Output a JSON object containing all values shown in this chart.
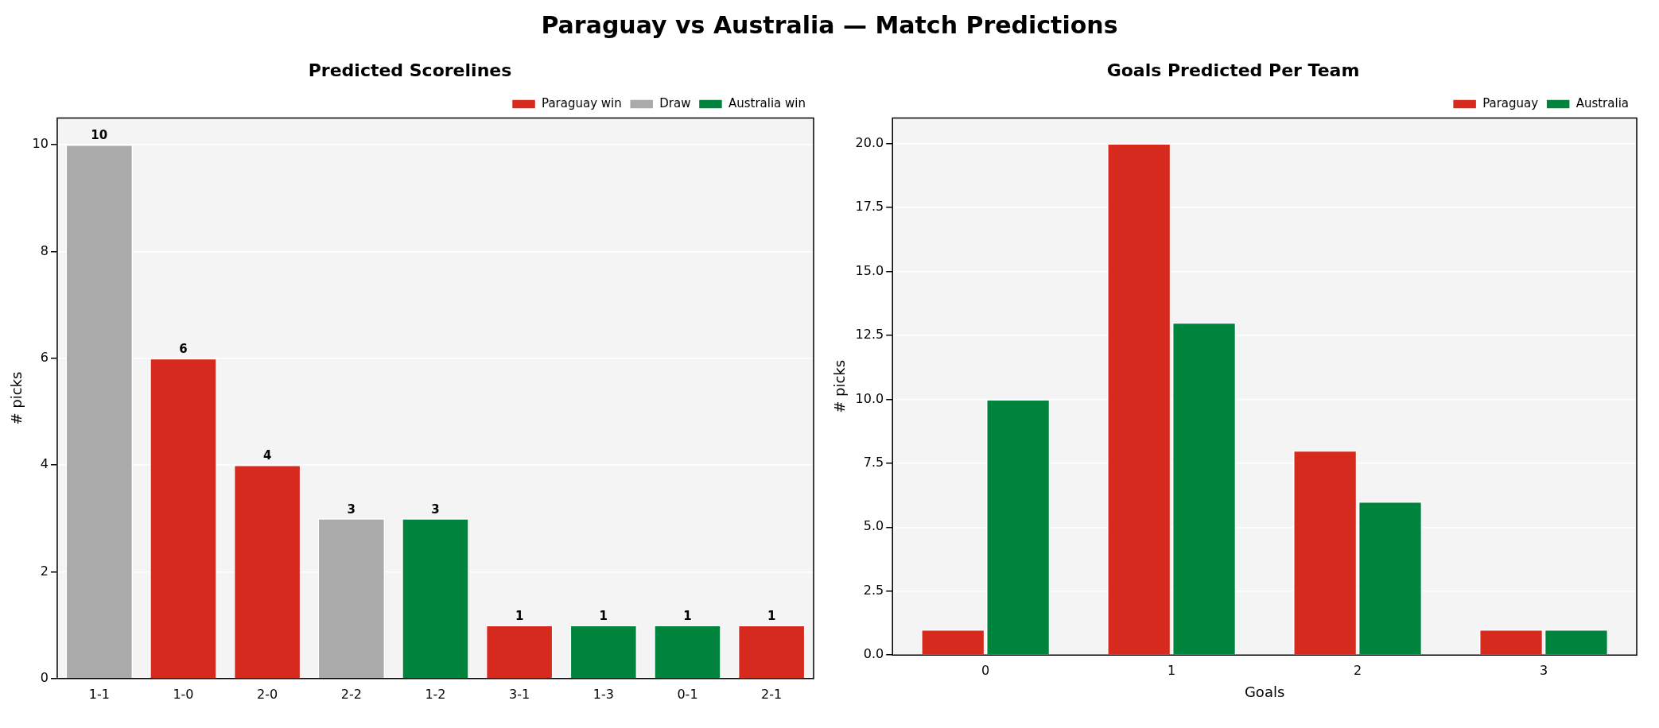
{
  "chart_data": [
    {
      "type": "other",
      "title": "Paraguay vs Australia  —  Match Predictions"
    },
    {
      "type": "bar",
      "title": "Predicted Scorelines",
      "ylabel": "# picks",
      "categories": [
        "1-1",
        "1-0",
        "2-0",
        "2-2",
        "1-2",
        "3-1",
        "1-3",
        "0-1",
        "2-1"
      ],
      "series": [
        {
          "name": "Paraguay win",
          "color": "#d62a1e",
          "values": [
            null,
            6,
            4,
            null,
            null,
            1,
            null,
            null,
            1
          ]
        },
        {
          "name": "Draw",
          "color": "#aaaaaa",
          "values": [
            10,
            null,
            null,
            3,
            null,
            null,
            null,
            null,
            null
          ]
        },
        {
          "name": "Australia win",
          "color": "#00843d",
          "values": [
            null,
            null,
            null,
            null,
            3,
            null,
            1,
            1,
            null
          ]
        }
      ],
      "ylim": [
        0,
        10.5
      ],
      "yticks": [
        0,
        2,
        4,
        6,
        8,
        10
      ],
      "grid": "y",
      "legend": "top right",
      "data_labels": true
    },
    {
      "type": "bar",
      "title": "Goals Predicted Per Team",
      "xlabel": "Goals",
      "ylabel": "# picks",
      "categories": [
        "0",
        "1",
        "2",
        "3"
      ],
      "series": [
        {
          "name": "Paraguay",
          "color": "#d62a1e",
          "values": [
            1,
            20,
            8,
            1
          ]
        },
        {
          "name": "Australia",
          "color": "#00843d",
          "values": [
            10,
            13,
            6,
            1
          ]
        }
      ],
      "ylim": [
        0,
        21
      ],
      "yticks": [
        {
          "value": 0,
          "label": "0.0"
        },
        {
          "value": 2.5,
          "label": "2.5"
        },
        {
          "value": 5,
          "label": "5.0"
        },
        {
          "value": 7.5,
          "label": "7.5"
        },
        {
          "value": 10,
          "label": "10.0"
        },
        {
          "value": 12.5,
          "label": "12.5"
        },
        {
          "value": 15,
          "label": "15.0"
        },
        {
          "value": 17.5,
          "label": "17.5"
        },
        {
          "value": 20,
          "label": "20.0"
        }
      ],
      "grid": "y",
      "legend": "top right"
    }
  ]
}
